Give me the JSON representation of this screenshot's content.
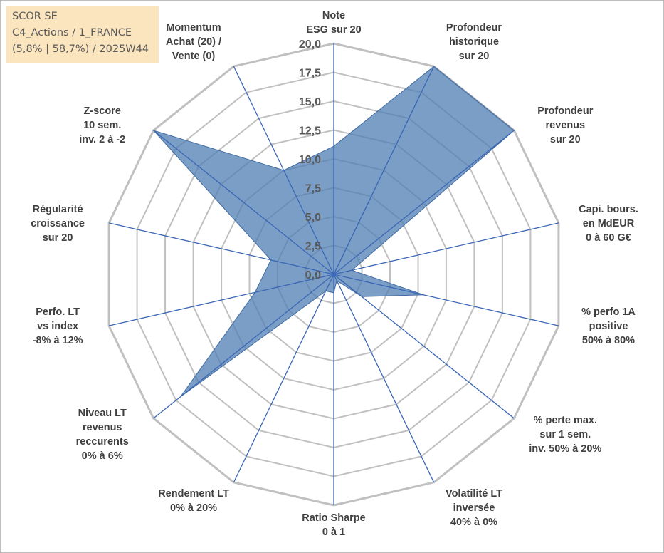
{
  "info": {
    "line1": "SCOR SE",
    "line2": "C4_Actions / 1_FRANCE",
    "line3": "(5,8% | 58,7%) / 2025W44"
  },
  "chart_data": {
    "type": "radar",
    "title": "SCOR SE",
    "rmax": 20,
    "tick_step": 2.5,
    "ticks": [
      "0,0",
      "2,5",
      "5,0",
      "7,5",
      "10,0",
      "12,5",
      "15,0",
      "17,5",
      "20,0"
    ],
    "axes": [
      [
        "Note",
        "ESG sur 20"
      ],
      [
        "Profondeur",
        "historique",
        "sur 20"
      ],
      [
        "Profondeur",
        "revenus",
        "sur 20"
      ],
      [
        "Capi. bours.",
        "en MdEUR",
        "0 à 60 G€"
      ],
      [
        "% perfo 1A",
        "positive",
        "50% à 80%"
      ],
      [
        "% perte max.",
        "sur 1 sem.",
        "inv. 50% à 20%"
      ],
      [
        "Volatilité LT",
        "inversée",
        "40% à 0%"
      ],
      [
        "Ratio Sharpe",
        "0 à 1"
      ],
      [
        "Rendement LT",
        "0% à 20%"
      ],
      [
        "Niveau LT",
        "revenus",
        "reccurents",
        "0% à 6%"
      ],
      [
        "Perfo. LT",
        "vs index",
        "-8% à 12%"
      ],
      [
        "Régularité",
        "croissance",
        "sur 20"
      ],
      [
        "Z-score",
        "10 sem.",
        "inv. 2 à -2"
      ],
      [
        "Momentum",
        "Achat (20) /",
        "Vente (0)"
      ]
    ],
    "series": [
      {
        "name": "SCOR SE",
        "values": [
          11.1,
          20.0,
          20.0,
          1.6,
          8.0,
          3.1,
          0.6,
          1.6,
          1.6,
          17.0,
          7.0,
          5.6,
          20.0,
          10.0
        ],
        "color": "#4f7db3"
      }
    ],
    "grid_color": "#c0c0c0",
    "spoke_color": "#3a66b4"
  }
}
